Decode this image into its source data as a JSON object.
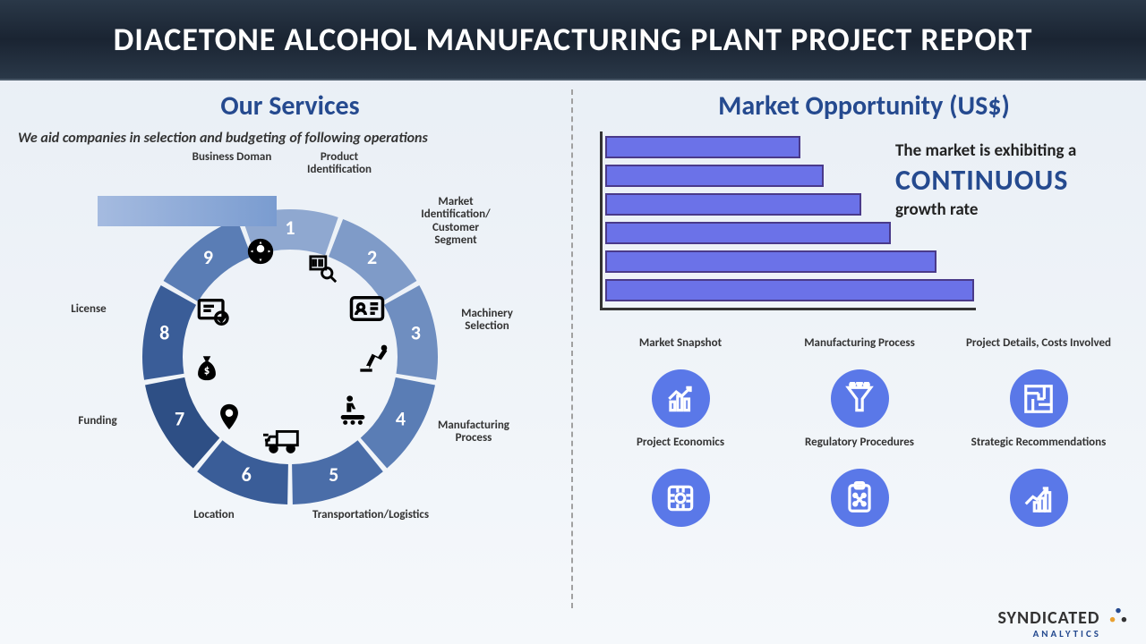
{
  "header": {
    "title": "DIACETONE ALCOHOL MANUFACTURING PLANT PROJECT REPORT"
  },
  "services": {
    "title": "Our Services",
    "subtitle": "We aid companies in selection and budgeting of following operations",
    "segments": [
      {
        "num": "1",
        "label": "Business Doman",
        "color": "#8fa8d0"
      },
      {
        "num": "2",
        "label": "Product Identification",
        "color": "#7f9bc8"
      },
      {
        "num": "3",
        "label": "Market Identification/ Customer Segment",
        "color": "#6f8ec0"
      },
      {
        "num": "4",
        "label": "Machinery Selection",
        "color": "#5a7db5"
      },
      {
        "num": "5",
        "label": "Manufacturing Process",
        "color": "#4a6da8"
      },
      {
        "num": "6",
        "label": "Transportation/Logistics",
        "color": "#3a5d98"
      },
      {
        "num": "7",
        "label": "Location",
        "color": "#2e4f85"
      },
      {
        "num": "8",
        "label": "Funding",
        "color": "#3a5d98"
      },
      {
        "num": "9",
        "label": "License",
        "color": "#5a7db5"
      }
    ]
  },
  "market": {
    "title": "Market Opportunity (US$)",
    "growth_text1": "The market is exhibiting a",
    "growth_text_big": "CONTINUOUS",
    "growth_text2": "growth rate",
    "bars": [
      {
        "width_pct": 52
      },
      {
        "width_pct": 58
      },
      {
        "width_pct": 68
      },
      {
        "width_pct": 76
      },
      {
        "width_pct": 88
      },
      {
        "width_pct": 98
      }
    ],
    "bar_color": "#6b72e8",
    "bar_border": "#4a3a8a",
    "features": [
      {
        "label": "Market Snapshot",
        "icon": "chart-line"
      },
      {
        "label": "Manufacturing Process",
        "icon": "funnel"
      },
      {
        "label": "Project Details, Costs Involved",
        "icon": "maze"
      },
      {
        "label": "Project Economics",
        "icon": "puzzle"
      },
      {
        "label": "Regulatory Procedures",
        "icon": "clipboard"
      },
      {
        "label": "Strategic Recommendations",
        "icon": "growth"
      }
    ]
  },
  "footer": {
    "brand1": "SYNDICATED",
    "brand2": "ANALYTICS"
  }
}
